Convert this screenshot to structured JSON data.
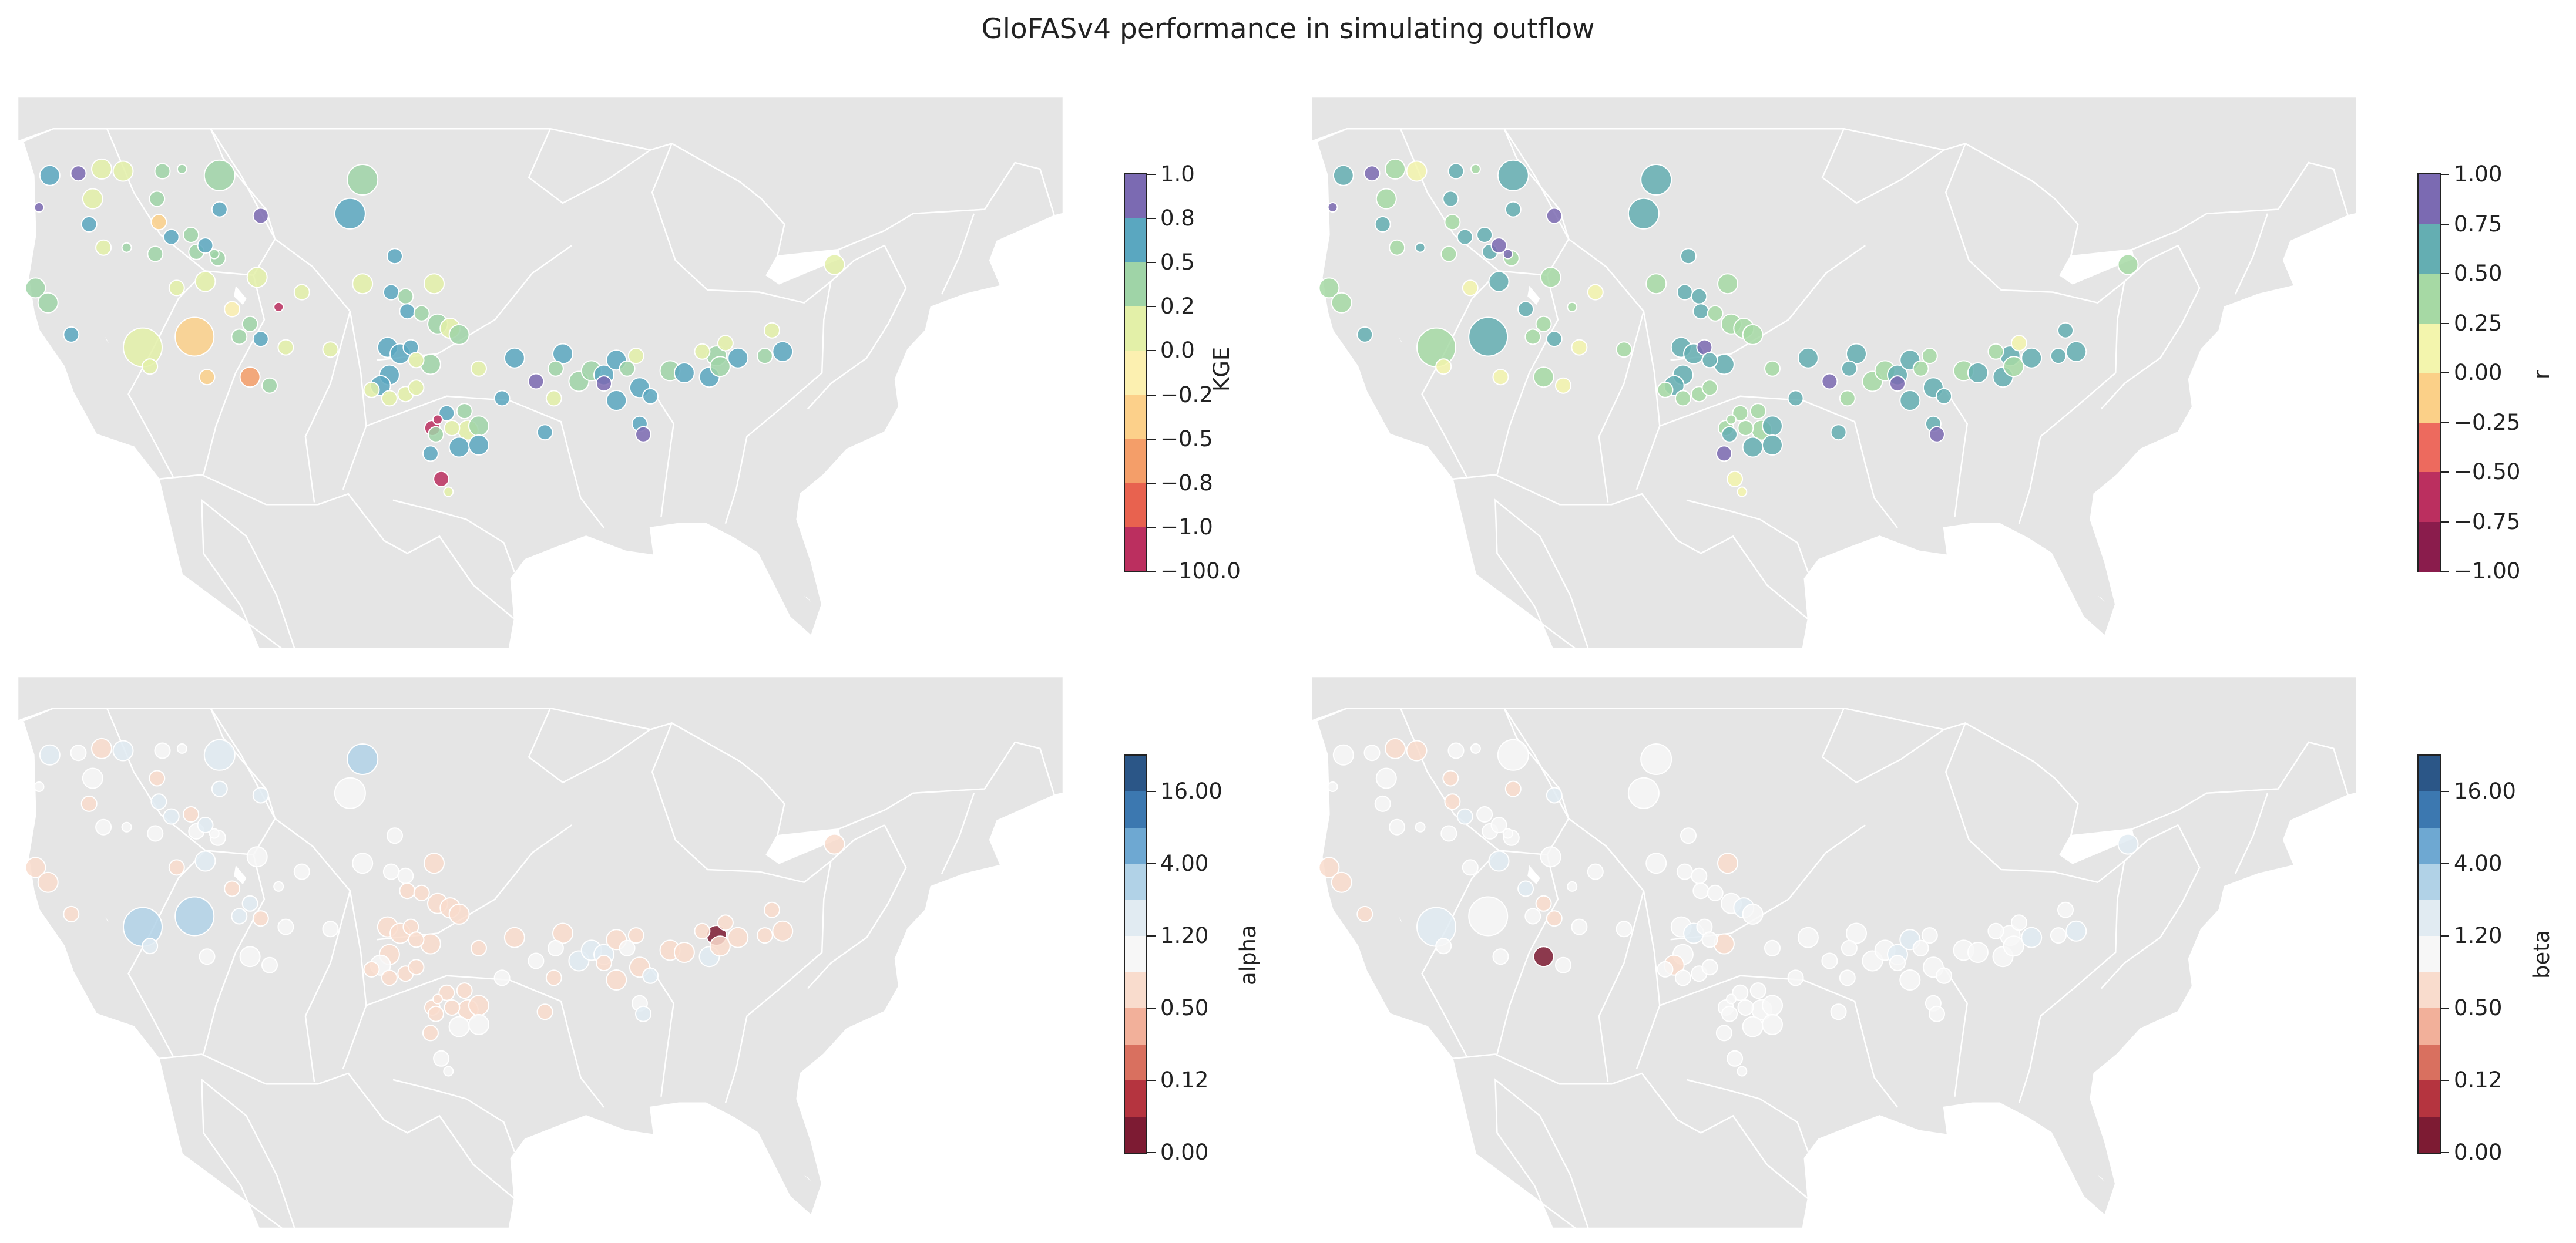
{
  "figure": {
    "title": "GloFASv4 performance in simulating outflow"
  },
  "colors": {
    "land": "#e5e5e5",
    "borders": "#ffffff",
    "station_edge": "#ffffff"
  },
  "panels": [
    {
      "metric": "KGE",
      "colorbar_label": "KGE",
      "tick_labels": [
        "1.0",
        "0.8",
        "0.5",
        "0.2",
        "0.0",
        "−0.2",
        "−0.5",
        "−0.8",
        "−1.0",
        "−100.0"
      ],
      "band_colors": [
        "#7b6ab2",
        "#5aa7c0",
        "#9fd4a7",
        "#e3f0a8",
        "#fcf0b0",
        "#fcd08a",
        "#f49e69",
        "#e8624f",
        "#bb2f5f"
      ]
    },
    {
      "metric": "r",
      "colorbar_label": "r",
      "tick_labels": [
        "1.00",
        "0.75",
        "0.50",
        "0.25",
        "0.00",
        "−0.25",
        "−0.50",
        "−0.75",
        "−1.00"
      ],
      "band_colors": [
        "#7b6ab2",
        "#64aeb2",
        "#a6d9a4",
        "#f3f5ad",
        "#fbd088",
        "#ed6a5e",
        "#bb2f5f",
        "#8a1c4c"
      ]
    },
    {
      "metric": "alpha",
      "colorbar_label": "alpha",
      "tick_labels": [
        "16.00",
        "4.00",
        "1.20",
        "0.50",
        "0.12",
        "0.00"
      ],
      "band_colors": [
        "#2b5687",
        "#3c78b0",
        "#6ea8d2",
        "#b1d2e7",
        "#e1ebf2",
        "#f7f7f7",
        "#f9dccd",
        "#f2b09a",
        "#d9705f",
        "#b5343f",
        "#7d1b33"
      ]
    },
    {
      "metric": "beta",
      "colorbar_label": "beta",
      "tick_labels": [
        "16.00",
        "4.00",
        "1.20",
        "0.50",
        "0.12",
        "0.00"
      ],
      "band_colors": [
        "#2b5687",
        "#3c78b0",
        "#6ea8d2",
        "#b1d2e7",
        "#e1ebf2",
        "#f7f7f7",
        "#f9dccd",
        "#f2b09a",
        "#d9705f",
        "#b5343f",
        "#7d1b33"
      ]
    }
  ],
  "stations": [
    {
      "lon": -123.2,
      "lat": 46.8,
      "size": 3,
      "KGE": 0.55,
      "r": 0.62,
      "alpha": 1.3,
      "beta": 0.95
    },
    {
      "lon": -121.6,
      "lat": 46.9,
      "size": 2,
      "KGE": 0.9,
      "r": 0.92,
      "alpha": 0.9,
      "beta": 1.0
    },
    {
      "lon": -120.3,
      "lat": 47.1,
      "size": 3,
      "KGE": 0.05,
      "r": 0.3,
      "alpha": 0.6,
      "beta": 0.6
    },
    {
      "lon": -119.1,
      "lat": 47.0,
      "size": 3,
      "KGE": 0.1,
      "r": 0.2,
      "alpha": 1.5,
      "beta": 0.7
    },
    {
      "lon": -116.9,
      "lat": 47.0,
      "size": 2,
      "KGE": 0.4,
      "r": 0.55,
      "alpha": 1.0,
      "beta": 1.1
    },
    {
      "lon": -115.8,
      "lat": 47.1,
      "size": 1,
      "KGE": 0.3,
      "r": 0.35,
      "alpha": 1.0,
      "beta": 0.9
    },
    {
      "lon": -113.7,
      "lat": 46.8,
      "size": 4,
      "KGE": 0.35,
      "r": 0.55,
      "alpha": 1.8,
      "beta": 1.0
    },
    {
      "lon": -105.7,
      "lat": 46.6,
      "size": 4,
      "KGE": 0.4,
      "r": 0.58,
      "alpha": 2.5,
      "beta": 1.0
    },
    {
      "lon": -120.8,
      "lat": 45.7,
      "size": 3,
      "KGE": 0.1,
      "r": 0.25,
      "alpha": 1.0,
      "beta": 0.9
    },
    {
      "lon": -117.2,
      "lat": 45.7,
      "size": 2,
      "KGE": 0.35,
      "r": 0.55,
      "alpha": 0.5,
      "beta": 0.8
    },
    {
      "lon": -123.8,
      "lat": 45.3,
      "size": 1,
      "KGE": 1.0,
      "r": 0.95,
      "alpha": 1.0,
      "beta": 1.0
    },
    {
      "lon": -121.0,
      "lat": 44.5,
      "size": 2,
      "KGE": 0.6,
      "r": 0.65,
      "alpha": 0.6,
      "beta": 1.0
    },
    {
      "lon": -117.1,
      "lat": 44.6,
      "size": 2,
      "KGE": -0.3,
      "r": 0.35,
      "alpha": 1.3,
      "beta": 0.7
    },
    {
      "lon": -116.4,
      "lat": 43.9,
      "size": 2,
      "KGE": 0.5,
      "r": 0.5,
      "alpha": 1.3,
      "beta": 1.3
    },
    {
      "lon": -115.3,
      "lat": 44.0,
      "size": 2,
      "KGE": 0.35,
      "r": 0.7,
      "alpha": 0.7,
      "beta": 1.0
    },
    {
      "lon": -113.7,
      "lat": 45.2,
      "size": 2,
      "KGE": 0.6,
      "r": 0.6,
      "alpha": 1.3,
      "beta": 0.8
    },
    {
      "lon": -111.4,
      "lat": 44.9,
      "size": 2,
      "KGE": 0.9,
      "r": 0.9,
      "alpha": 1.2,
      "beta": 1.3
    },
    {
      "lon": -106.4,
      "lat": 45.0,
      "size": 4,
      "KGE": 0.6,
      "r": 0.62,
      "alpha": 1.0,
      "beta": 1.0
    },
    {
      "lon": -103.9,
      "lat": 43.0,
      "size": 2,
      "KGE": 0.55,
      "r": 0.7,
      "alpha": 1.0,
      "beta": 1.0
    },
    {
      "lon": -120.2,
      "lat": 43.4,
      "size": 2,
      "KGE": 0.05,
      "r": 0.3,
      "alpha": 1.0,
      "beta": 1.0
    },
    {
      "lon": -118.9,
      "lat": 43.4,
      "size": 1,
      "KGE": 0.4,
      "r": 0.6,
      "alpha": 1.0,
      "beta": 1.1
    },
    {
      "lon": -117.3,
      "lat": 43.1,
      "size": 2,
      "KGE": 0.2,
      "r": 0.3,
      "alpha": 1.0,
      "beta": 1.0
    },
    {
      "lon": -115.0,
      "lat": 43.2,
      "size": 2,
      "KGE": 0.3,
      "r": 0.6,
      "alpha": 1.0,
      "beta": 0.9
    },
    {
      "lon": -113.8,
      "lat": 42.9,
      "size": 2,
      "KGE": 0.3,
      "r": 0.4,
      "alpha": 1.0,
      "beta": 1.0
    },
    {
      "lon": -114.5,
      "lat": 43.5,
      "size": 2,
      "KGE": 0.55,
      "r": 0.85,
      "alpha": 1.5,
      "beta": 0.9
    },
    {
      "lon": -114.0,
      "lat": 43.1,
      "size": 1,
      "KGE": 0.4,
      "r": 0.85,
      "alpha": 1.1,
      "beta": 1.0
    },
    {
      "lon": -124.0,
      "lat": 41.5,
      "size": 3,
      "KGE": 0.3,
      "r": 0.4,
      "alpha": 0.6,
      "beta": 0.6
    },
    {
      "lon": -123.3,
      "lat": 40.8,
      "size": 3,
      "KGE": 0.35,
      "r": 0.4,
      "alpha": 0.6,
      "beta": 0.55
    },
    {
      "lon": -122.0,
      "lat": 39.3,
      "size": 2,
      "KGE": 0.55,
      "r": 0.6,
      "alpha": 0.6,
      "beta": 0.6
    },
    {
      "lon": -116.1,
      "lat": 41.5,
      "size": 2,
      "KGE": 0.1,
      "r": 0.2,
      "alpha": 0.8,
      "beta": 1.0
    },
    {
      "lon": -114.5,
      "lat": 41.8,
      "size": 3,
      "KGE": 0.15,
      "r": 0.55,
      "alpha": 1.3,
      "beta": 1.3
    },
    {
      "lon": -111.6,
      "lat": 42.0,
      "size": 3,
      "KGE": 0.15,
      "r": 0.4,
      "alpha": 1.0,
      "beta": 1.0
    },
    {
      "lon": -109.1,
      "lat": 41.3,
      "size": 2,
      "KGE": 0.05,
      "r": 0.2,
      "alpha": 1.0,
      "beta": 1.0
    },
    {
      "lon": -113.0,
      "lat": 40.5,
      "size": 2,
      "KGE": -0.2,
      "r": 0.6,
      "alpha": 0.7,
      "beta": 1.3
    },
    {
      "lon": -112.6,
      "lat": 39.2,
      "size": 2,
      "KGE": 0.4,
      "r": 0.4,
      "alpha": 1.5,
      "beta": 0.9
    },
    {
      "lon": -110.4,
      "lat": 40.6,
      "size": 1,
      "KGE": -1.5,
      "r": 0.4,
      "alpha": 1.0,
      "beta": 1.0
    },
    {
      "lon": -118.0,
      "lat": 38.7,
      "size": 5,
      "KGE": 0.0,
      "r": 0.35,
      "alpha": 3.0,
      "beta": 1.3
    },
    {
      "lon": -115.1,
      "lat": 39.2,
      "size": 5,
      "KGE": -0.3,
      "r": 0.6,
      "alpha": 3.0,
      "beta": 1.0
    },
    {
      "lon": -112.0,
      "lat": 39.8,
      "size": 2,
      "KGE": 0.3,
      "r": 0.3,
      "alpha": 1.4,
      "beta": 0.7
    },
    {
      "lon": -111.4,
      "lat": 39.1,
      "size": 2,
      "KGE": 0.55,
      "r": 0.55,
      "alpha": 0.8,
      "beta": 0.6
    },
    {
      "lon": -110.0,
      "lat": 38.7,
      "size": 2,
      "KGE": 0.05,
      "r": 0.1,
      "alpha": 0.9,
      "beta": 1.0
    },
    {
      "lon": -117.6,
      "lat": 37.8,
      "size": 2,
      "KGE": 0.0,
      "r": 0.2,
      "alpha": 1.2,
      "beta": 1.0
    },
    {
      "lon": -114.4,
      "lat": 37.3,
      "size": 2,
      "KGE": -0.3,
      "r": 0.2,
      "alpha": 1.0,
      "beta": 1.0
    },
    {
      "lon": -112.0,
      "lat": 37.3,
      "size": 3,
      "KGE": -0.6,
      "r": 0.4,
      "alpha": 1.0,
      "beta": 0.05
    },
    {
      "lon": -110.9,
      "lat": 36.9,
      "size": 2,
      "KGE": 0.2,
      "r": 0.2,
      "alpha": 1.0,
      "beta": 1.0
    },
    {
      "lon": -107.5,
      "lat": 38.6,
      "size": 2,
      "KGE": 0.0,
      "r": 0.3,
      "alpha": 1.0,
      "beta": 1.0
    },
    {
      "lon": -105.7,
      "lat": 41.7,
      "size": 3,
      "KGE": 0.05,
      "r": 0.35,
      "alpha": 1.0,
      "beta": 1.0
    },
    {
      "lon": -104.1,
      "lat": 41.3,
      "size": 2,
      "KGE": 0.6,
      "r": 0.6,
      "alpha": 1.0,
      "beta": 1.0
    },
    {
      "lon": -103.3,
      "lat": 41.1,
      "size": 2,
      "KGE": 0.3,
      "r": 0.5,
      "alpha": 1.0,
      "beta": 1.0
    },
    {
      "lon": -101.7,
      "lat": 41.7,
      "size": 3,
      "KGE": 0.0,
      "r": 0.3,
      "alpha": 0.6,
      "beta": 0.6
    },
    {
      "lon": -103.2,
      "lat": 40.4,
      "size": 2,
      "KGE": 0.55,
      "r": 0.55,
      "alpha": 0.6,
      "beta": 0.9
    },
    {
      "lon": -102.4,
      "lat": 40.3,
      "size": 2,
      "KGE": 0.3,
      "r": 0.35,
      "alpha": 0.55,
      "beta": 1.1
    },
    {
      "lon": -101.5,
      "lat": 39.8,
      "size": 3,
      "KGE": 0.35,
      "r": 0.45,
      "alpha": 0.55,
      "beta": 1.0
    },
    {
      "lon": -100.8,
      "lat": 39.6,
      "size": 3,
      "KGE": 0.0,
      "r": 0.3,
      "alpha": 0.5,
      "beta": 1.2
    },
    {
      "lon": -100.3,
      "lat": 39.3,
      "size": 3,
      "KGE": 0.3,
      "r": 0.45,
      "alpha": 0.6,
      "beta": 1.0
    },
    {
      "lon": -104.3,
      "lat": 38.7,
      "size": 3,
      "KGE": 0.6,
      "r": 0.55,
      "alpha": 0.6,
      "beta": 1.0
    },
    {
      "lon": -103.6,
      "lat": 38.4,
      "size": 3,
      "KGE": 0.5,
      "r": 0.6,
      "alpha": 0.55,
      "beta": 1.2
    },
    {
      "lon": -103.0,
      "lat": 38.7,
      "size": 2,
      "KGE": 0.55,
      "r": 0.8,
      "alpha": 0.6,
      "beta": 1.1
    },
    {
      "lon": -102.7,
      "lat": 38.1,
      "size": 2,
      "KGE": 0.1,
      "r": 0.55,
      "alpha": 0.6,
      "beta": 1.0
    },
    {
      "lon": -101.9,
      "lat": 37.9,
      "size": 3,
      "KGE": 0.3,
      "r": 0.5,
      "alpha": 0.5,
      "beta": 0.5
    },
    {
      "lon": -104.2,
      "lat": 37.4,
      "size": 3,
      "KGE": 0.6,
      "r": 0.6,
      "alpha": 0.8,
      "beta": 1.0
    },
    {
      "lon": -104.7,
      "lat": 36.9,
      "size": 3,
      "KGE": 0.6,
      "r": 0.5,
      "alpha": 1.0,
      "beta": 0.8
    },
    {
      "lon": -105.2,
      "lat": 36.7,
      "size": 2,
      "KGE": 0.05,
      "r": 0.25,
      "alpha": 0.8,
      "beta": 1.0
    },
    {
      "lon": -104.2,
      "lat": 36.3,
      "size": 2,
      "KGE": 0.05,
      "r": 0.25,
      "alpha": 0.8,
      "beta": 1.0
    },
    {
      "lon": -103.3,
      "lat": 36.5,
      "size": 2,
      "KGE": 0.05,
      "r": 0.3,
      "alpha": 0.5,
      "beta": 0.9
    },
    {
      "lon": -102.7,
      "lat": 36.8,
      "size": 2,
      "KGE": 0.0,
      "r": 0.3,
      "alpha": 0.6,
      "beta": 1.1
    },
    {
      "lon": -97.2,
      "lat": 38.2,
      "size": 3,
      "KGE": 0.5,
      "r": 0.55,
      "alpha": 0.6,
      "beta": 1.0
    },
    {
      "lon": -96.0,
      "lat": 37.1,
      "size": 2,
      "KGE": 0.9,
      "r": 0.9,
      "alpha": 1.0,
      "beta": 0.9
    },
    {
      "lon": -94.9,
      "lat": 37.7,
      "size": 2,
      "KGE": 0.3,
      "r": 0.55,
      "alpha": 1.0,
      "beta": 1.0
    },
    {
      "lon": -94.5,
      "lat": 38.4,
      "size": 3,
      "KGE": 0.55,
      "r": 0.6,
      "alpha": 0.6,
      "beta": 1.0
    },
    {
      "lon": -93.6,
      "lat": 37.1,
      "size": 3,
      "KGE": 0.3,
      "r": 0.4,
      "alpha": 1.2,
      "beta": 1.0
    },
    {
      "lon": -92.9,
      "lat": 37.6,
      "size": 3,
      "KGE": 0.35,
      "r": 0.45,
      "alpha": 1.4,
      "beta": 1.0
    },
    {
      "lon": -92.2,
      "lat": 37.4,
      "size": 3,
      "KGE": 0.6,
      "r": 0.6,
      "alpha": 1.3,
      "beta": 1.2
    },
    {
      "lon": -91.5,
      "lat": 38.1,
      "size": 3,
      "KGE": 0.5,
      "r": 0.6,
      "alpha": 0.55,
      "beta": 1.3
    },
    {
      "lon": -90.4,
      "lat": 38.3,
      "size": 2,
      "KGE": 0.1,
      "r": 0.35,
      "alpha": 0.6,
      "beta": 1.0
    },
    {
      "lon": -90.9,
      "lat": 37.7,
      "size": 2,
      "KGE": 0.4,
      "r": 0.45,
      "alpha": 1.0,
      "beta": 1.1
    },
    {
      "lon": -99.2,
      "lat": 37.7,
      "size": 2,
      "KGE": 0.1,
      "r": 0.3,
      "alpha": 0.6,
      "beta": 1.0
    },
    {
      "lon": -97.9,
      "lat": 36.3,
      "size": 2,
      "KGE": 0.6,
      "r": 0.6,
      "alpha": 1.1,
      "beta": 1.0
    },
    {
      "lon": -101.5,
      "lat": 35.3,
      "size": 1,
      "KGE": -1.5,
      "r": 0.25,
      "alpha": 0.5,
      "beta": 1.0
    },
    {
      "lon": -101.0,
      "lat": 35.6,
      "size": 2,
      "KGE": 0.5,
      "r": 0.45,
      "alpha": 0.6,
      "beta": 1.0
    },
    {
      "lon": -100.0,
      "lat": 35.7,
      "size": 2,
      "KGE": 0.35,
      "r": 0.4,
      "alpha": 0.6,
      "beta": 1.0
    },
    {
      "lon": -101.8,
      "lat": 34.9,
      "size": 2,
      "KGE": -1.5,
      "r": 0.45,
      "alpha": 0.5,
      "beta": 1.0
    },
    {
      "lon": -101.6,
      "lat": 34.6,
      "size": 2,
      "KGE": 0.4,
      "r": 0.55,
      "alpha": 0.6,
      "beta": 1.0
    },
    {
      "lon": -100.7,
      "lat": 34.9,
      "size": 2,
      "KGE": 0.0,
      "r": 0.3,
      "alpha": 0.6,
      "beta": 1.0
    },
    {
      "lon": -99.8,
      "lat": 34.8,
      "size": 3,
      "KGE": 0.05,
      "r": 0.45,
      "alpha": 0.5,
      "beta": 1.0
    },
    {
      "lon": -99.2,
      "lat": 35.0,
      "size": 3,
      "KGE": 0.3,
      "r": 0.5,
      "alpha": 0.6,
      "beta": 1.0
    },
    {
      "lon": -100.3,
      "lat": 34.0,
      "size": 3,
      "KGE": 0.55,
      "r": 0.55,
      "alpha": 1.0,
      "beta": 1.0
    },
    {
      "lon": -101.9,
      "lat": 33.7,
      "size": 2,
      "KGE": 0.6,
      "r": 0.85,
      "alpha": 0.6,
      "beta": 1.0
    },
    {
      "lon": -99.2,
      "lat": 34.1,
      "size": 3,
      "KGE": 0.6,
      "r": 0.6,
      "alpha": 1.0,
      "beta": 1.1
    },
    {
      "lon": -101.3,
      "lat": 32.5,
      "size": 2,
      "KGE": -1.5,
      "r": 0.05,
      "alpha": 1.0,
      "beta": 1.0
    },
    {
      "lon": -100.9,
      "lat": 31.9,
      "size": 1,
      "KGE": 0.0,
      "r": 0.1,
      "alpha": 1.0,
      "beta": 1.0
    },
    {
      "lon": -95.0,
      "lat": 36.3,
      "size": 2,
      "KGE": 0.05,
      "r": 0.35,
      "alpha": 0.55,
      "beta": 1.0
    },
    {
      "lon": -95.5,
      "lat": 34.7,
      "size": 2,
      "KGE": 0.5,
      "r": 0.5,
      "alpha": 0.6,
      "beta": 1.0
    },
    {
      "lon": -91.5,
      "lat": 36.2,
      "size": 3,
      "KGE": 0.55,
      "r": 0.55,
      "alpha": 0.6,
      "beta": 0.9
    },
    {
      "lon": -90.2,
      "lat": 36.8,
      "size": 3,
      "KGE": 0.6,
      "r": 0.6,
      "alpha": 0.5,
      "beta": 1.1
    },
    {
      "lon": -89.6,
      "lat": 36.4,
      "size": 2,
      "KGE": 0.55,
      "r": 0.55,
      "alpha": 1.5,
      "beta": 1.0
    },
    {
      "lon": -90.2,
      "lat": 35.1,
      "size": 2,
      "KGE": 0.6,
      "r": 0.6,
      "alpha": 1.0,
      "beta": 1.0
    },
    {
      "lon": -90.0,
      "lat": 34.6,
      "size": 2,
      "KGE": 0.9,
      "r": 0.9,
      "alpha": 1.2,
      "beta": 1.0
    },
    {
      "lon": -92.2,
      "lat": 37.0,
      "size": 2,
      "KGE": 0.9,
      "r": 0.9,
      "alpha": 0.8,
      "beta": 1.0
    },
    {
      "lon": -88.5,
      "lat": 37.6,
      "size": 3,
      "KGE": 0.4,
      "r": 0.45,
      "alpha": 0.6,
      "beta": 1.1
    },
    {
      "lon": -87.7,
      "lat": 37.5,
      "size": 3,
      "KGE": 0.55,
      "r": 0.6,
      "alpha": 0.5,
      "beta": 0.9
    },
    {
      "lon": -86.7,
      "lat": 38.5,
      "size": 2,
      "KGE": 0.1,
      "r": 0.4,
      "alpha": 0.6,
      "beta": 1.0
    },
    {
      "lon": -85.9,
      "lat": 38.3,
      "size": 3,
      "KGE": 0.45,
      "r": 0.55,
      "alpha": 0.05,
      "beta": 1.0
    },
    {
      "lon": -86.3,
      "lat": 37.3,
      "size": 3,
      "KGE": 0.6,
      "r": 0.6,
      "alpha": 1.5,
      "beta": 1.0
    },
    {
      "lon": -85.7,
      "lat": 37.8,
      "size": 3,
      "KGE": 0.3,
      "r": 0.4,
      "alpha": 0.5,
      "beta": 1.1
    },
    {
      "lon": -84.7,
      "lat": 38.2,
      "size": 3,
      "KGE": 0.55,
      "r": 0.55,
      "alpha": 0.6,
      "beta": 1.2
    },
    {
      "lon": -83.2,
      "lat": 38.3,
      "size": 2,
      "KGE": 0.4,
      "r": 0.5,
      "alpha": 0.7,
      "beta": 1.0
    },
    {
      "lon": -82.8,
      "lat": 39.5,
      "size": 2,
      "KGE": 0.1,
      "r": 0.55,
      "alpha": 0.8,
      "beta": 1.0
    },
    {
      "lon": -82.2,
      "lat": 38.5,
      "size": 3,
      "KGE": 0.5,
      "r": 0.6,
      "alpha": 0.6,
      "beta": 1.5
    },
    {
      "lon": -85.4,
      "lat": 38.9,
      "size": 2,
      "KGE": 0.0,
      "r": 0.2,
      "alpha": 0.5,
      "beta": 1.0
    },
    {
      "lon": -79.3,
      "lat": 42.6,
      "size": 3,
      "KGE": 0.05,
      "r": 0.35,
      "alpha": 0.5,
      "beta": 1.3
    }
  ]
}
